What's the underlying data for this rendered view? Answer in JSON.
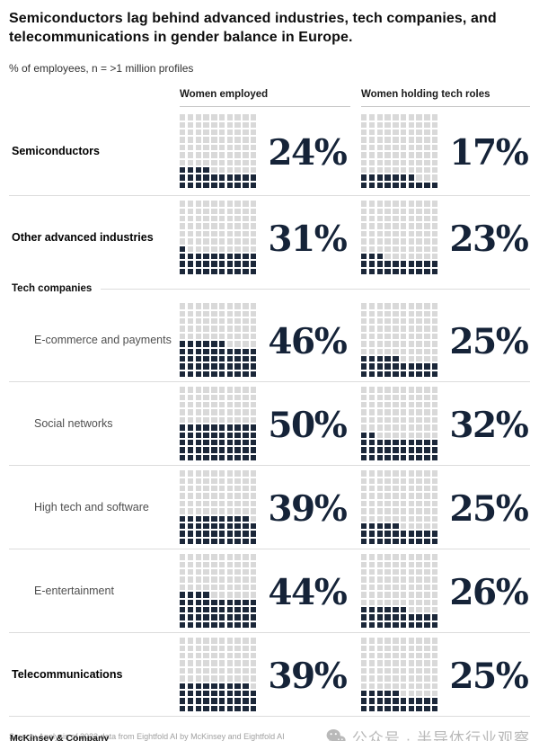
{
  "title": "Semiconductors lag behind advanced industries, tech companies, and telecommunications in gender balance in Europe.",
  "subtitle": "% of employees, n = >1 million profiles",
  "chart_data": {
    "type": "waffle",
    "unit": "%",
    "grid": {
      "rows": 10,
      "cols": 10,
      "cells": 100
    },
    "columns": [
      "Women employed",
      "Women holding tech roles"
    ],
    "section_header": {
      "label": "Tech companies",
      "before_row_index": 2
    },
    "rows": [
      {
        "label": "Semiconductors",
        "bold": true,
        "indent": false,
        "women_employed": 24,
        "women_holding_tech_roles": 17
      },
      {
        "label": "Other advanced industries",
        "bold": true,
        "indent": false,
        "women_employed": 31,
        "women_holding_tech_roles": 23
      },
      {
        "label": "E-commerce and payments",
        "bold": false,
        "indent": true,
        "women_employed": 46,
        "women_holding_tech_roles": 25
      },
      {
        "label": "Social networks",
        "bold": false,
        "indent": true,
        "women_employed": 50,
        "women_holding_tech_roles": 32
      },
      {
        "label": "High tech and software",
        "bold": false,
        "indent": true,
        "women_employed": 39,
        "women_holding_tech_roles": 25
      },
      {
        "label": "E-entertainment",
        "bold": false,
        "indent": true,
        "women_employed": 44,
        "women_holding_tech_roles": 26
      },
      {
        "label": "Telecommunications",
        "bold": true,
        "indent": false,
        "women_employed": 39,
        "women_holding_tech_roles": 25
      }
    ],
    "colors": {
      "filled": "#1b2739",
      "empty": "#d9d9d9",
      "percent_text": "#152338"
    },
    "legend_position": "none",
    "fill_direction": "bottom-left"
  },
  "footer": {
    "source": "Source: Analysis of 2022 data from Eightfold AI by McKinsey and Eightfold AI",
    "watermark": "公众号 · 半导体行业观察",
    "brand": "McKinsey & Company"
  }
}
